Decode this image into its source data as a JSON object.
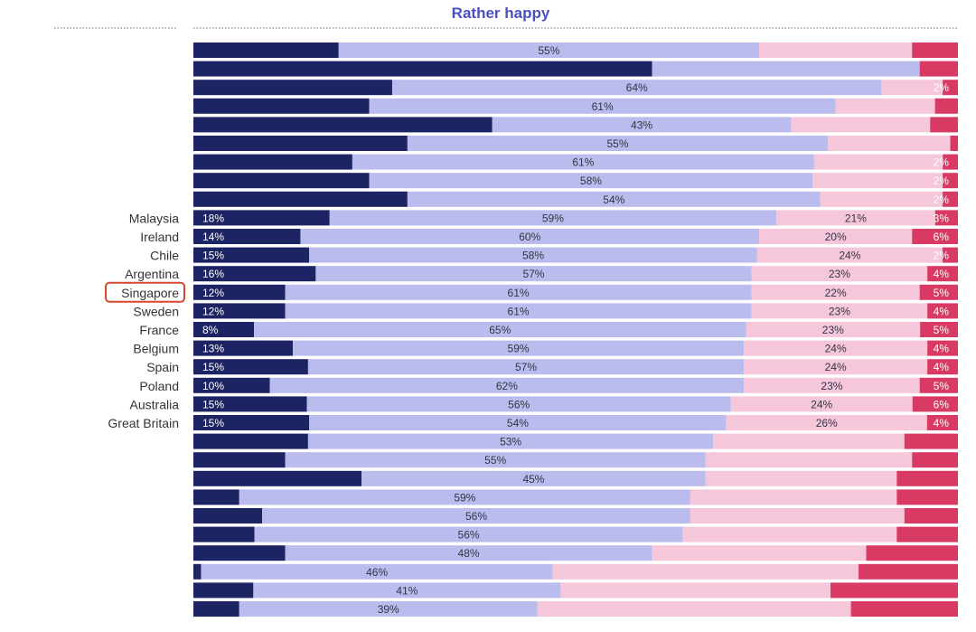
{
  "colors": {
    "very_happy": "#1d2463",
    "rather_happy": "#b9bcec",
    "not_very_happy": "#f6c6da",
    "not_at_all_happy": "#d93a63",
    "title": "#4a4fc1",
    "highlight": "#d9472b"
  },
  "chart_data": {
    "type": "bar",
    "orientation": "horizontal",
    "stacked": true,
    "normalized": true,
    "title": "Rather happy",
    "highlighted_category": "Singapore",
    "categories": [
      "",
      "",
      "",
      "",
      "",
      "",
      "",
      "",
      "",
      "Malaysia",
      "Ireland",
      "Chile",
      "Argentina",
      "Singapore",
      "Sweden",
      "France",
      "Belgium",
      "Spain",
      "Poland",
      "Australia",
      "Great Britain",
      "",
      "",
      "",
      "",
      "",
      "",
      "",
      "",
      "",
      ""
    ],
    "series": [
      {
        "values": [
          19,
          60,
          26,
          23,
          43,
          28,
          21,
          23,
          28,
          18,
          14,
          15,
          16,
          12,
          12,
          8,
          13,
          15,
          10,
          15,
          15,
          15,
          12,
          22,
          6,
          9,
          8,
          12,
          1,
          8,
          6
        ],
        "labels": [
          "",
          "",
          "",
          "",
          "",
          "",
          "",
          "",
          "",
          "18%",
          "14%",
          "15%",
          "16%",
          "12%",
          "12%",
          "8%",
          "13%",
          "15%",
          "10%",
          "15%",
          "15%",
          "",
          "",
          "",
          "",
          "",
          "",
          "",
          "",
          "",
          ""
        ]
      },
      {
        "values": [
          55,
          35,
          64,
          61,
          43,
          55,
          61,
          58,
          54,
          59,
          60,
          58,
          57,
          61,
          61,
          65,
          59,
          57,
          62,
          56,
          54,
          53,
          55,
          45,
          59,
          56,
          56,
          48,
          46,
          41,
          39
        ],
        "labels": [
          "55%",
          "",
          "64%",
          "61%",
          "43%",
          "55%",
          "61%",
          "58%",
          "54%",
          "59%",
          "60%",
          "58%",
          "57%",
          "61%",
          "61%",
          "65%",
          "59%",
          "57%",
          "62%",
          "56%",
          "54%",
          "53%",
          "55%",
          "45%",
          "59%",
          "56%",
          "56%",
          "48%",
          "46%",
          "41%",
          "39%"
        ]
      },
      {
        "values": [
          20,
          0,
          8,
          13,
          20,
          16,
          17,
          17,
          16,
          21,
          20,
          24,
          23,
          22,
          23,
          23,
          24,
          24,
          23,
          24,
          26,
          25,
          27,
          25,
          27,
          28,
          28,
          28,
          40,
          36,
          41
        ],
        "labels": [
          "",
          "",
          "",
          "",
          "",
          "",
          "",
          "",
          "",
          "21%",
          "20%",
          "24%",
          "23%",
          "22%",
          "23%",
          "23%",
          "24%",
          "24%",
          "23%",
          "24%",
          "26%",
          "",
          "",
          "",
          "",
          "",
          "",
          "",
          "",
          "",
          ""
        ]
      },
      {
        "values": [
          6,
          5,
          2,
          3,
          4,
          1,
          2,
          2,
          2,
          3,
          6,
          2,
          4,
          5,
          4,
          5,
          4,
          4,
          5,
          6,
          4,
          7,
          6,
          8,
          8,
          7,
          8,
          12,
          13,
          17,
          14
        ],
        "labels": [
          "",
          "",
          "2%",
          "",
          "",
          "",
          "2%",
          "2%",
          "2%",
          "3%",
          "6%",
          "2%",
          "4%",
          "5%",
          "4%",
          "5%",
          "4%",
          "4%",
          "5%",
          "6%",
          "4%",
          "",
          "",
          "",
          "",
          "",
          "",
          "",
          "",
          "",
          ""
        ]
      }
    ]
  }
}
